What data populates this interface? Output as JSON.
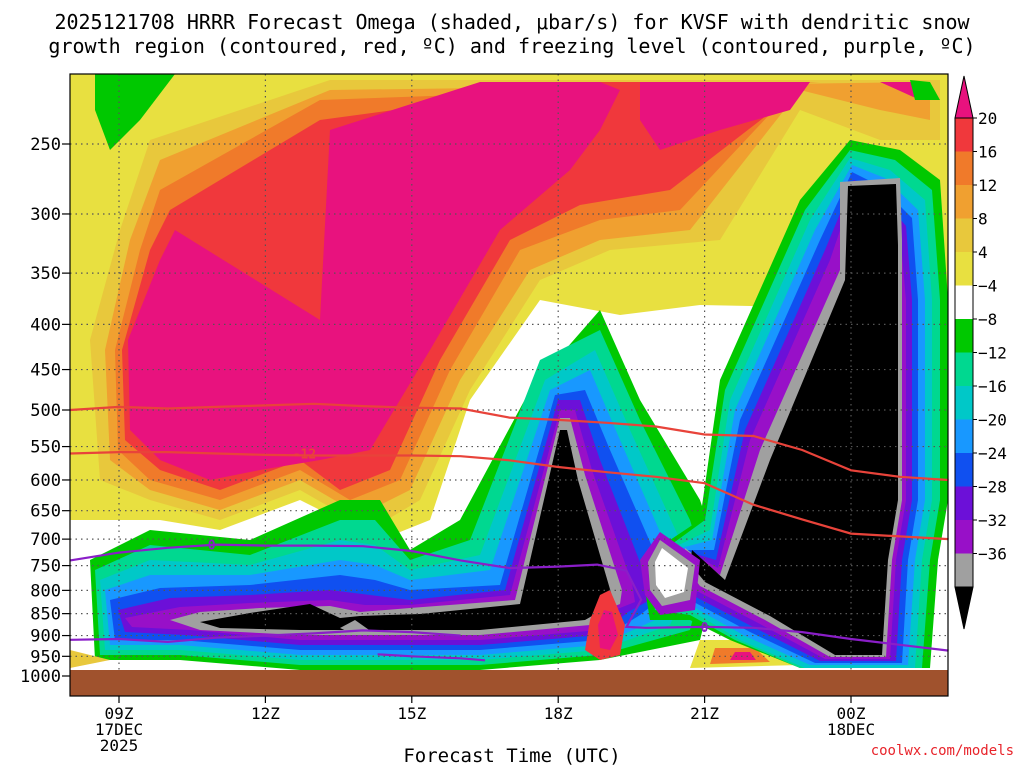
{
  "header": {
    "title_line1": "2025121708 HRRR Forecast Omega (shaded, μbar/s) for KVSF with dendritic snow",
    "title_line2": "growth region (contoured, red, ºC) and freezing level (contoured, purple, ºC)"
  },
  "footer": {
    "xlabel": "Forecast Time (UTC)",
    "credit": "coolwx.com/models"
  },
  "colors": {
    "ground": "#a0522d",
    "contour_red": "#e8433a",
    "contour_purple": "#8a1ec8",
    "magenta": "#e8127e"
  },
  "chart_data": {
    "type": "heatmap",
    "y_axis": {
      "quantity": "pressure (hPa)",
      "ticks": [
        250,
        300,
        350,
        400,
        450,
        500,
        550,
        600,
        650,
        700,
        750,
        800,
        850,
        900,
        950,
        1000
      ],
      "range": [
        200,
        1000
      ],
      "scale": "log-pressure"
    },
    "x_axis": {
      "ticks": [
        {
          "hour": 9,
          "label": "09Z",
          "sub1": "17DEC",
          "sub2": "2025"
        },
        {
          "hour": 12,
          "label": "12Z",
          "sub1": "",
          "sub2": ""
        },
        {
          "hour": 15,
          "label": "15Z",
          "sub1": "",
          "sub2": ""
        },
        {
          "hour": 18,
          "label": "18Z",
          "sub1": "",
          "sub2": ""
        },
        {
          "hour": 21,
          "label": "21Z",
          "sub1": "",
          "sub2": ""
        },
        {
          "hour": 24,
          "label": "00Z",
          "sub1": "18DEC",
          "sub2": ""
        }
      ],
      "range_hours": [
        8,
        26
      ]
    },
    "colorbar": {
      "levels": [
        20,
        16,
        12,
        8,
        4,
        -4,
        -8,
        -12,
        -16,
        -20,
        -24,
        -28,
        -32,
        -36
      ],
      "labels": [
        "20",
        "16",
        "12",
        "8",
        "4",
        "−4",
        "−8",
        "−12",
        "−16",
        "−20",
        "−24",
        "−28",
        "−32",
        "−36"
      ],
      "colors": [
        "#e8127e",
        "#f0383c",
        "#f07a2a",
        "#f0a030",
        "#e8c83c",
        "#e8e040",
        "#ffffff",
        "#00c800",
        "#00d890",
        "#00c8c8",
        "#1898ff",
        "#1050f0",
        "#6c10d8",
        "#9810c8",
        "#a0a0a0",
        "#000000"
      ]
    },
    "contour_labels": [
      {
        "text": "-12",
        "hour": 12.8,
        "pressure": 560
      },
      {
        "text": "0",
        "hour": 10.9,
        "pressure": 710
      },
      {
        "text": "0",
        "hour": 21.0,
        "pressure": 880
      }
    ],
    "freezing_level_hpa": [
      [
        8.0,
        740
      ],
      [
        9.0,
        725
      ],
      [
        10.0,
        716
      ],
      [
        11.0,
        710
      ],
      [
        12.0,
        712
      ],
      [
        13.0,
        712
      ],
      [
        14.0,
        713
      ],
      [
        15.0,
        722
      ],
      [
        16.0,
        740
      ],
      [
        17.0,
        755
      ],
      [
        18.0,
        752
      ],
      [
        18.8,
        748
      ],
      [
        19.4,
        760
      ],
      [
        19.7,
        820
      ],
      [
        19.4,
        880
      ],
      [
        19.8,
        882
      ],
      [
        21.0,
        880
      ],
      [
        22.0,
        882
      ],
      [
        23.0,
        892
      ],
      [
        24.0,
        908
      ],
      [
        25.0,
        922
      ],
      [
        26.0,
        936
      ]
    ],
    "dgz_top_hpa": [
      [
        8.0,
        500
      ],
      [
        9.0,
        496
      ],
      [
        10.0,
        498
      ],
      [
        11.0,
        496
      ],
      [
        12.0,
        494
      ],
      [
        13.0,
        492
      ],
      [
        14.0,
        495
      ],
      [
        15.0,
        497
      ],
      [
        16.0,
        498
      ],
      [
        17.0,
        510
      ],
      [
        18.0,
        513
      ],
      [
        19.0,
        517
      ],
      [
        20.0,
        522
      ],
      [
        21.0,
        533
      ],
      [
        22.0,
        535
      ],
      [
        23.0,
        555
      ],
      [
        24.0,
        585
      ],
      [
        25.0,
        595
      ],
      [
        26.0,
        600
      ]
    ],
    "dgz_bottom_hpa": [
      [
        8.0,
        560
      ],
      [
        9.0,
        558
      ],
      [
        10.0,
        558
      ],
      [
        11.0,
        560
      ],
      [
        12.0,
        562
      ],
      [
        13.0,
        563
      ],
      [
        14.0,
        563
      ],
      [
        15.0,
        563
      ],
      [
        16.0,
        564
      ],
      [
        17.0,
        570
      ],
      [
        18.0,
        580
      ],
      [
        19.0,
        588
      ],
      [
        20.0,
        595
      ],
      [
        21.0,
        605
      ],
      [
        22.0,
        640
      ],
      [
        23.0,
        665
      ],
      [
        24.0,
        690
      ],
      [
        25.0,
        695
      ],
      [
        26.0,
        700
      ]
    ]
  }
}
